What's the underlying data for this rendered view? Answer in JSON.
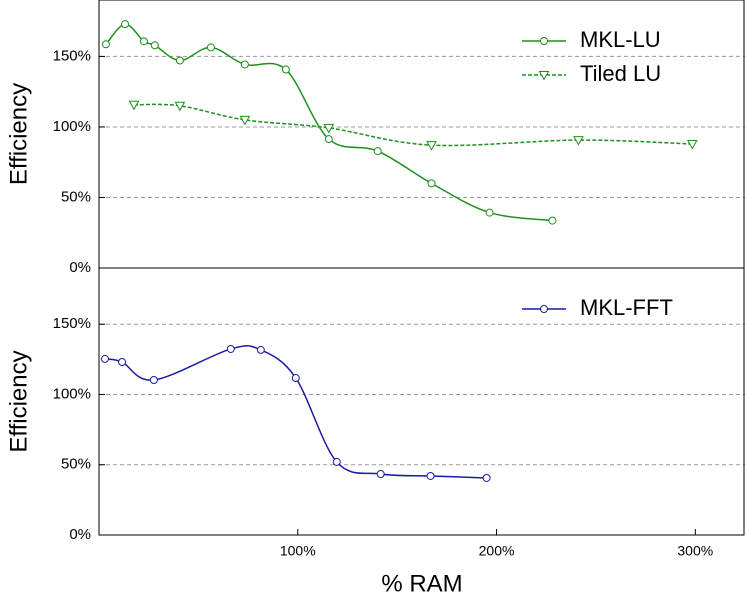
{
  "chart_data": [
    {
      "type": "line",
      "y_label": "Efficiency",
      "xlim": [
        0,
        325
      ],
      "ylim": [
        0,
        190
      ],
      "yticks": [
        {
          "value": 0,
          "label": "0%"
        },
        {
          "value": 50,
          "label": "50%"
        },
        {
          "value": 100,
          "label": "100%"
        },
        {
          "value": 150,
          "label": "150%"
        }
      ],
      "grid": true,
      "legend": "upper right",
      "series": [
        {
          "name": "MKL-LU",
          "color": "#1f8f1f",
          "line_style": "solid",
          "marker": "circle",
          "x": [
            3.5,
            13.1,
            22.6,
            28.1,
            40.7,
            56.3,
            73.4,
            94.0,
            115.6,
            140.2,
            167.3,
            196.5,
            228.1
          ],
          "values": [
            158.6,
            172.9,
            160.7,
            157.9,
            147.1,
            156.4,
            144.3,
            140.7,
            91.4,
            82.9,
            60,
            39.3,
            33.6
          ]
        },
        {
          "name": "Tiled LU",
          "color": "#1f8f1f",
          "line_style": "dashed",
          "marker": "triangle",
          "x": [
            17.6,
            40.7,
            73.4,
            115.6,
            167.3,
            241.2,
            298.5
          ],
          "values": [
            115.7,
            115,
            105,
            99.3,
            87.1,
            90.7,
            87.9
          ]
        }
      ]
    },
    {
      "type": "line",
      "y_label": "Efficiency",
      "x_label": "% RAM",
      "xlim": [
        0,
        325
      ],
      "xticks": [
        {
          "value": 100,
          "label": "100%"
        },
        {
          "value": 200,
          "label": "200%"
        },
        {
          "value": 300,
          "label": "300%"
        }
      ],
      "ylim": [
        0,
        190
      ],
      "yticks": [
        {
          "value": 0,
          "label": "0%"
        },
        {
          "value": 50,
          "label": "50%"
        },
        {
          "value": 100,
          "label": "100%"
        },
        {
          "value": 150,
          "label": "150%"
        }
      ],
      "grid": true,
      "legend": "upper right",
      "series": [
        {
          "name": "MKL-FFT",
          "color": "#1a1aa6",
          "line_style": "solid",
          "marker": "circle",
          "x": [
            3.0,
            11.6,
            27.6,
            66.3,
            81.4,
            99.0,
            119.6,
            141.7,
            166.8,
            195.0
          ],
          "values": [
            125.3,
            123.1,
            110.3,
            132.4,
            131.7,
            111.7,
            52,
            43.4,
            42,
            40.6
          ]
        }
      ]
    }
  ]
}
